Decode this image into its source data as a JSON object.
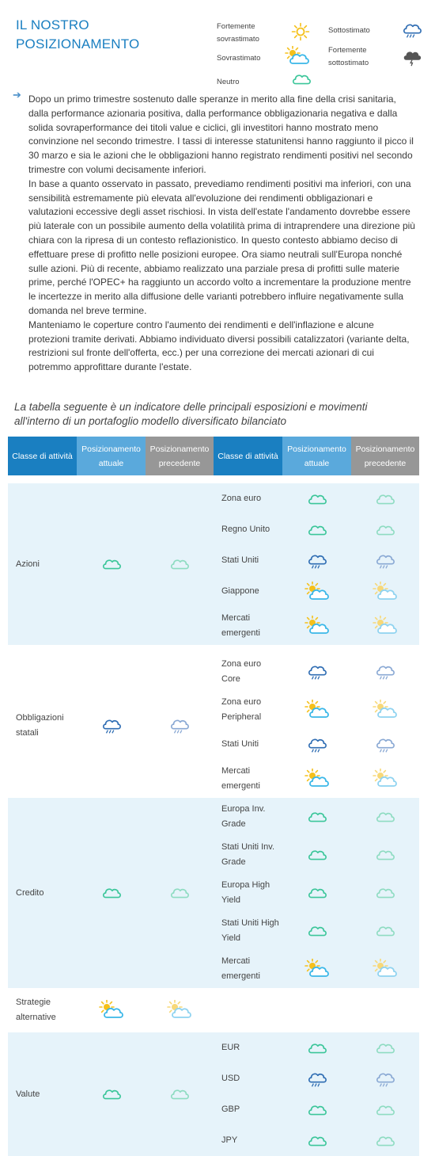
{
  "title_line1": "IL NOSTRO",
  "title_line2": "POSIZIONAMENTO",
  "legend": {
    "strong_over_1": "Fortemente",
    "strong_over_2": "sovrastimato",
    "over": "Sovrastimato",
    "neutral": "Neutro",
    "under": "Sottostimato",
    "strong_under_1": "Fortemente",
    "strong_under_2": "sottostimato"
  },
  "icons": {
    "sun": "sun-icon",
    "sun_cloud": "sun-cloud-icon",
    "cloud": "cloud-icon",
    "rain": "rain-cloud-icon",
    "storm": "storm-cloud-icon"
  },
  "colors": {
    "title": "#1a7fc1",
    "header_class": "#1a7fc1",
    "header_current": "#5aa9dc",
    "header_previous": "#979797",
    "row_bg": "#e6f3fa"
  },
  "paragraphs": [
    "Dopo un primo trimestre sostenuto dalle speranze in merito alla fine della crisi sanitaria, dalla performance azionaria positiva, dalla performance obbligazionaria negativa e dalla solida sovraperformance dei titoli value e ciclici, gli investitori hanno mostrato meno convinzione nel secondo trimestre. I tassi di interesse statunitensi hanno raggiunto il picco il 30 marzo e sia le azioni che le obbligazioni hanno registrato rendimenti positivi nel secondo trimestre con volumi decisamente inferiori.",
    "In base a quanto osservato in passato, prevediamo rendimenti positivi ma inferiori, con una sensibilità estremamente più elevata all'evoluzione dei rendimenti obbligazionari e valutazioni eccessive degli asset rischiosi. In vista dell'estate l'andamento dovrebbe essere più laterale con un possibile aumento della volatilità prima di intraprendere una direzione più chiara con la ripresa di un contesto reflazionistico. In questo contesto abbiamo deciso di effettuare prese di profitto nelle posizioni europee. Ora siamo neutrali sull'Europa nonché sulle azioni. Più di recente, abbiamo realizzato una parziale presa di profitti sulle materie prime, perché l'OPEC+ ha raggiunto un accordo volto a incrementare la produzione mentre le incertezze in merito alla diffusione delle varianti potrebbero influire negativamente sulla domanda nel breve termine.",
    "Manteniamo le coperture contro l'aumento dei rendimenti e dell'inflazione e alcune protezioni tramite derivati. Abbiamo individuato diversi possibili catalizzatori (variante delta, restrizioni sul fronte dell'offerta, ecc.) per una correzione dei mercati azionari di cui potremmo approfittare durante l'estate."
  ],
  "note": "La tabella seguente è un indicatore delle principali esposizioni e movimenti all'interno di un portafoglio modello diversificato bilanciato",
  "table": {
    "headers": [
      "Classe di attività",
      "Posizionamento attuale",
      "Posizionamento precedente",
      "Classe di attività",
      "Posizionamento attuale",
      "Posizionamento precedente"
    ],
    "groups": [
      {
        "name": "Azioni",
        "current": "neutral",
        "previous": "neutral",
        "items": [
          {
            "name": "Zona euro",
            "current": "neutral",
            "previous": "neutral"
          },
          {
            "name": "Regno Unito",
            "current": "neutral",
            "previous": "neutral"
          },
          {
            "name": "Stati Uniti",
            "current": "under",
            "previous": "under"
          },
          {
            "name": "Giappone",
            "current": "over",
            "previous": "over"
          },
          {
            "name": "Mercati emergenti",
            "current": "over",
            "previous": "over"
          }
        ]
      },
      {
        "name": "Obbligazioni statali",
        "current": "under",
        "previous": "under",
        "items": [
          {
            "name": "Zona euro Core",
            "current": "under",
            "previous": "under"
          },
          {
            "name": "Zona euro Peripheral",
            "current": "over",
            "previous": "over"
          },
          {
            "name": "Stati Uniti",
            "current": "under",
            "previous": "under"
          },
          {
            "name": "Mercati emergenti",
            "current": "over",
            "previous": "over"
          }
        ]
      },
      {
        "name": "Credito",
        "current": "neutral",
        "previous": "neutral",
        "items": [
          {
            "name": "Europa Inv. Grade",
            "current": "neutral",
            "previous": "neutral"
          },
          {
            "name": "Stati Uniti Inv. Grade",
            "current": "neutral",
            "previous": "neutral"
          },
          {
            "name": "Europa High Yield",
            "current": "neutral",
            "previous": "neutral"
          },
          {
            "name": "Stati Uniti High Yield",
            "current": "neutral",
            "previous": "neutral"
          },
          {
            "name": "Mercati emergenti",
            "current": "over",
            "previous": "over"
          }
        ]
      },
      {
        "name": "Strategie alternative",
        "current": "over",
        "previous": "over",
        "items": []
      },
      {
        "name": "Valute",
        "current": "neutral",
        "previous": "neutral",
        "items": [
          {
            "name": "EUR",
            "current": "neutral",
            "previous": "neutral"
          },
          {
            "name": "USD",
            "current": "under",
            "previous": "under"
          },
          {
            "name": "GBP",
            "current": "neutral",
            "previous": "neutral"
          },
          {
            "name": "JPY",
            "current": "neutral",
            "previous": "neutral"
          }
        ]
      }
    ]
  }
}
